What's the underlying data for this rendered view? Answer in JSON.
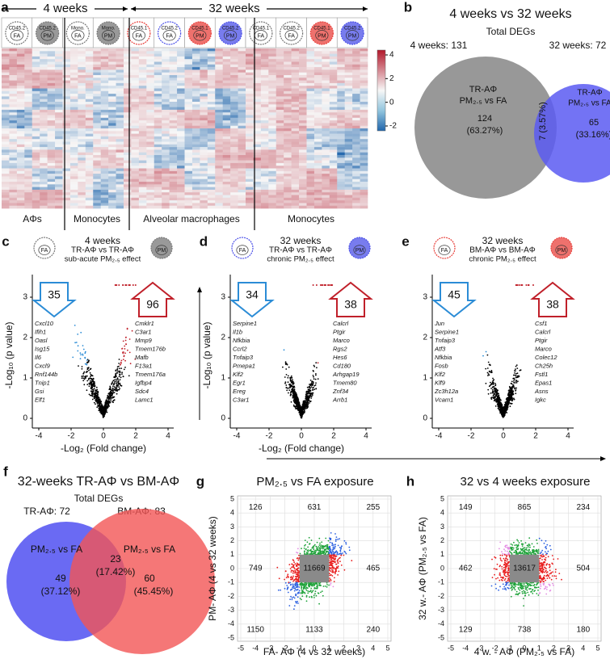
{
  "a": {
    "label": "a",
    "left_header": "4 weeks",
    "right_header": "32 weeks",
    "columns": [
      {
        "top": "CD45.2",
        "bottom": "FA"
      },
      {
        "top": "CD45.2",
        "bottom": "PM"
      },
      {
        "top": "Mono.",
        "bottom": "FA"
      },
      {
        "top": "Mono.",
        "bottom": "PM"
      },
      {
        "top": "CD45.1",
        "bottom": "FA"
      },
      {
        "top": "CD45.2",
        "bottom": "FA"
      },
      {
        "top": "CD45.1",
        "bottom": "PM"
      },
      {
        "top": "CD45.2",
        "bottom": "PM"
      },
      {
        "top": "CD45.1",
        "bottom": "FA"
      },
      {
        "top": "CD45.2",
        "bottom": "FA"
      },
      {
        "top": "CD45.1",
        "bottom": "PM"
      },
      {
        "top": "CD45.2",
        "bottom": "PM"
      }
    ],
    "groups": [
      "AΦs",
      "Monocytes",
      "Alveolar macrophages",
      "Monocytes"
    ],
    "colorbar_ticks": [
      4,
      2,
      0,
      -2
    ]
  },
  "b": {
    "label": "b",
    "title": "4 weeks vs 32 weeks",
    "subtitle": "Total DEGs",
    "left_total": "4 weeks: 131",
    "right_total": "32 weeks: 72",
    "left": {
      "cell": "TR-AΦ",
      "comparison": "PM₂.₅ vs FA",
      "count": 124,
      "percent": "(63.27%)"
    },
    "overlap": "7 (3.57%)",
    "right": {
      "cell": "TR-AΦ",
      "comparison": "PM₂.₅ vs FA",
      "count": 65,
      "percent": "(33.16%)"
    }
  },
  "volcanos": [
    {
      "label": "c",
      "title": "4 weeks",
      "subtitle": "TR-AΦ vs TR-AΦ",
      "note": "sub-acute PM₂.₅ effect",
      "icon_left": "FA",
      "icon_right": "PM",
      "down": 35,
      "up": 96,
      "down_genes": [
        "Cxcl10",
        "Ifih1",
        "Oasl",
        "Isg15",
        "Il6",
        "Cxcl9",
        "Rnf144b",
        "Tnip1",
        "Gsi",
        "Elf1"
      ],
      "up_genes": [
        "Cmklr1",
        "C3ar1",
        "Mmp9",
        "Tmem176b",
        "Mafb",
        "F13a1",
        "Tmem176a",
        "Igfbp4",
        "Sdc4",
        "Lamc1"
      ],
      "xticks": [
        -4,
        -2,
        0,
        2,
        4
      ],
      "yticks": [
        0,
        1,
        2,
        3
      ],
      "ylabel": "-Log₁₀ (p value)",
      "xlabel": "-Log₂ (Fold change)"
    },
    {
      "label": "d",
      "title": "32 weeks",
      "subtitle": "TR-AΦ vs TR-AΦ",
      "note": "chronic PM₂.₅ effect",
      "icon_left": "FA",
      "icon_right": "PM",
      "down": 34,
      "up": 38,
      "down_genes": [
        "Serpine1",
        "Il1b",
        "Nfkbia",
        "Ccrl2",
        "Tnfaip3",
        "Pmepa1",
        "Klf2",
        "Egr1",
        "Ereg",
        "C3ar1"
      ],
      "up_genes": [
        "Calcrl",
        "Ptgir",
        "Marco",
        "Rgs2",
        "Hes6",
        "Cd180",
        "Arhgap19",
        "Tmem80",
        "Znf34",
        "Arrb1"
      ],
      "xticks": [
        -4,
        -2,
        0,
        2,
        4
      ],
      "yticks": [
        0,
        1,
        2,
        3
      ],
      "ylabel": "-Log₁₀ (p value)",
      "xlabel": "-Log₂ (Fold change)"
    },
    {
      "label": "e",
      "title": "32 weeks",
      "subtitle": "BM-AΦ vs BM-AΦ",
      "note": "chronic PM₂.₅ effect",
      "icon_left": "FA",
      "icon_right": "PM",
      "down": 45,
      "up": 38,
      "down_genes": [
        "Jun",
        "Serpine1",
        "Tnfaip3",
        "Atf3",
        "Nfkbia",
        "Fosb",
        "Klf2",
        "Klf9",
        "Zc3h12a",
        "Vcam1"
      ],
      "up_genes": [
        "Csf1",
        "Calcrl",
        "Ptgir",
        "Marco",
        "Colec12",
        "Ch25h",
        "Fstl1",
        "Epas1",
        "Asns",
        "Igkc"
      ],
      "xticks": [
        -4,
        -2,
        0,
        2,
        4
      ],
      "yticks": [
        0,
        1,
        2,
        3
      ]
    }
  ],
  "f": {
    "label": "f",
    "title": "32-weeks TR-AΦ vs BM-AΦ",
    "subtitle": "Total DEGs",
    "left_total": "TR-AΦ: 72",
    "right_total": "BM-AΦ: 83",
    "left": {
      "comparison": "PM₂.₅ vs FA",
      "count": 49,
      "percent": "(37.12%)"
    },
    "overlap": {
      "count": 23,
      "percent": "(17.42%)"
    },
    "right": {
      "comparison": "PM₂.₅ vs FA",
      "count": 60,
      "percent": "(45.45%)"
    }
  },
  "quadrants": [
    {
      "label": "g",
      "title": "PM₂.₅ vs FA exposure",
      "counts": [
        [
          126,
          631,
          255
        ],
        [
          749,
          11669,
          465
        ],
        [
          1150,
          1133,
          240
        ]
      ],
      "xticks": [
        -5,
        -4,
        -3,
        -2,
        -1,
        0,
        1,
        2,
        3,
        4,
        5
      ],
      "yticks": [
        -5,
        -4,
        -3,
        -2,
        -1,
        0,
        1,
        2,
        3,
        4,
        5
      ],
      "xlabel": "FA- AΦ (4 vs 32 weeks)",
      "ylabel": "PM- AΦ (4 vs 32 weeks)"
    },
    {
      "label": "h",
      "title": "32 vs 4 weeks exposure",
      "counts": [
        [
          149,
          865,
          234
        ],
        [
          462,
          13617,
          504
        ],
        [
          129,
          738,
          180
        ]
      ],
      "xticks": [
        -5,
        -4,
        -3,
        -2,
        -1,
        0,
        1,
        2,
        3,
        4,
        5
      ],
      "yticks": [
        -5,
        -4,
        -3,
        -2,
        -1,
        0,
        1,
        2,
        3,
        4,
        5
      ],
      "xlabel": "4 w. - AΦ (PM₂.₅ vs FA)",
      "ylabel": "32 w.- AΦ (PM₂.₅ vs FA)"
    }
  ]
}
